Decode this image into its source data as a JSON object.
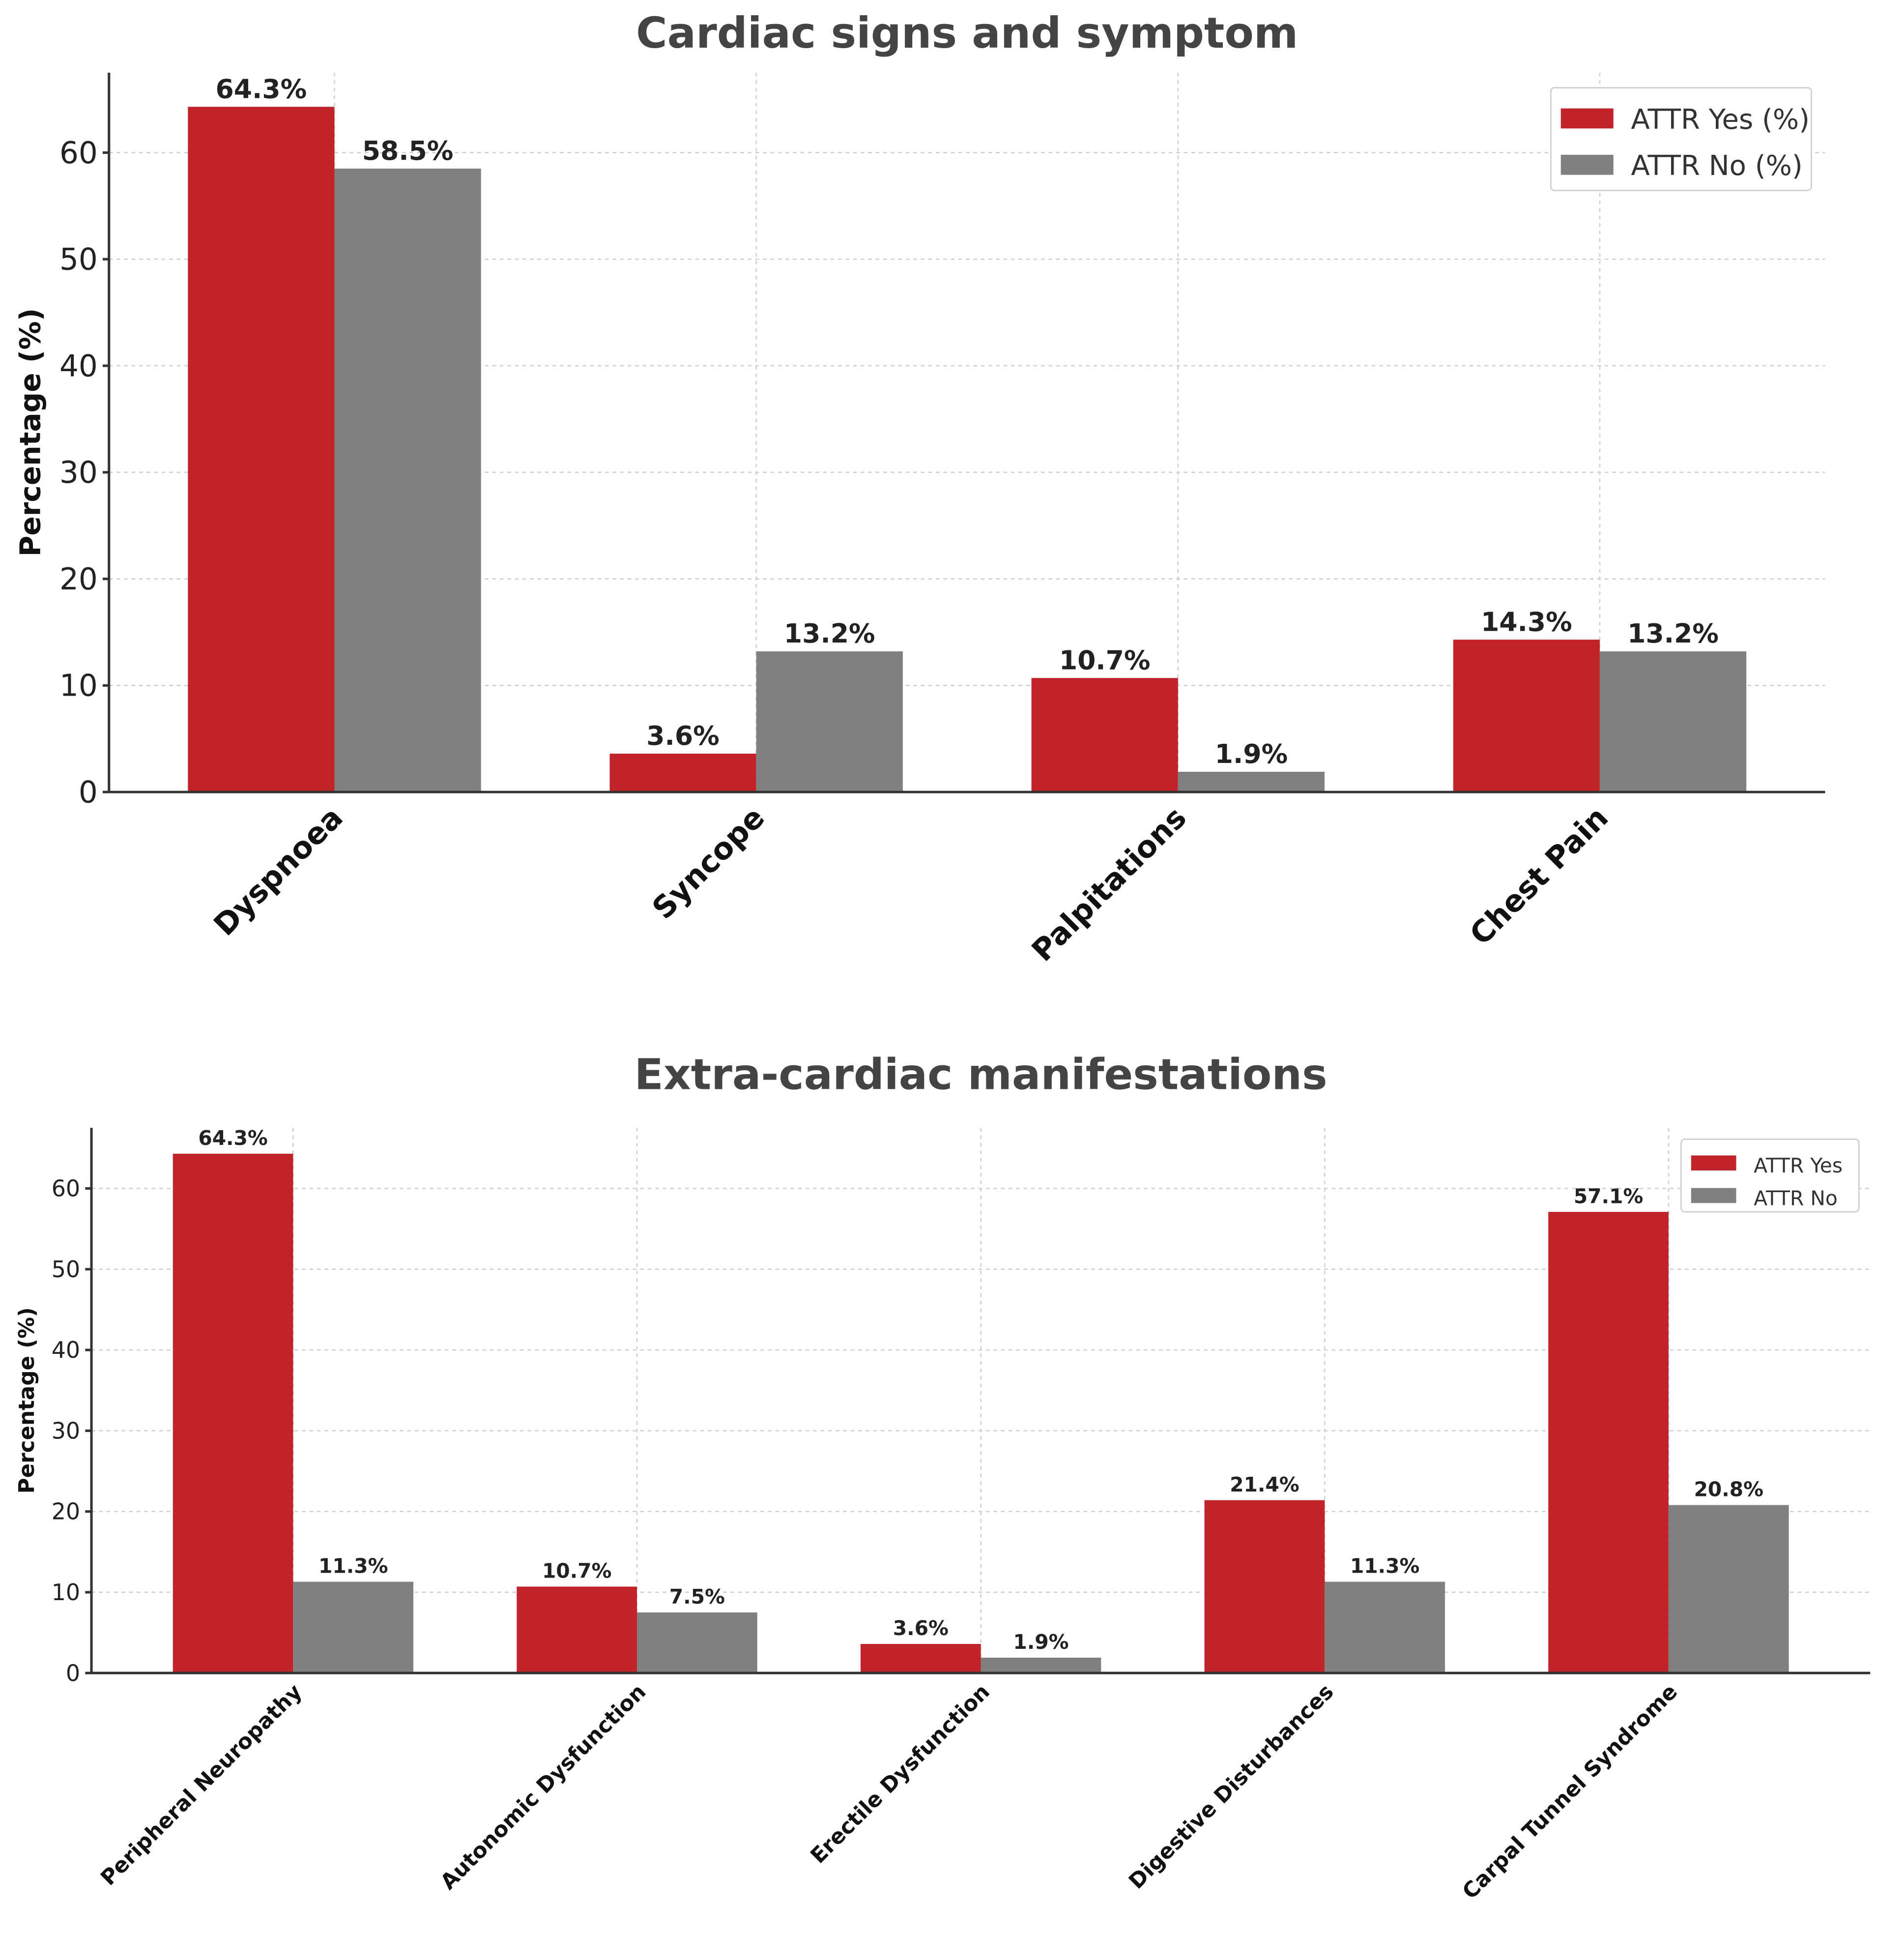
{
  "colors": {
    "yes": "#c0242a",
    "no": "#808080"
  },
  "chart_data": [
    {
      "type": "bar",
      "title": "Cardiac signs and symptom",
      "xlabel": "",
      "ylabel": "Percentage (%)",
      "ylim": [
        0,
        67.5
      ],
      "yticks": [
        0,
        10,
        20,
        30,
        40,
        50,
        60
      ],
      "grid": true,
      "legend_position": "top-right",
      "categories": [
        "Dyspnoea",
        "Syncope",
        "Palpitations",
        "Chest Pain"
      ],
      "series": [
        {
          "name": "ATTR Yes (%)",
          "values": [
            64.3,
            3.6,
            10.7,
            14.3
          ],
          "labels": [
            "64.3%",
            "3.6%",
            "10.7%",
            "14.3%"
          ]
        },
        {
          "name": "ATTR No (%)",
          "values": [
            58.5,
            13.2,
            1.9,
            13.2
          ],
          "labels": [
            "58.5%",
            "13.2%",
            "1.9%",
            "13.2%"
          ]
        }
      ]
    },
    {
      "type": "bar",
      "title": "Extra-cardiac manifestations",
      "xlabel": "",
      "ylabel": "Percentage (%)",
      "ylim": [
        0,
        67.5
      ],
      "yticks": [
        0,
        10,
        20,
        30,
        40,
        50,
        60
      ],
      "grid": true,
      "legend_position": "top-right",
      "categories": [
        "Peripheral Neuropathy",
        "Autonomic Dysfunction",
        "Erectile Dysfunction",
        "Digestive Disturbances",
        "Carpal Tunnel Syndrome"
      ],
      "series": [
        {
          "name": "ATTR Yes",
          "values": [
            64.3,
            10.7,
            3.6,
            21.4,
            57.1
          ],
          "labels": [
            "64.3%",
            "10.7%",
            "3.6%",
            "21.4%",
            "57.1%"
          ]
        },
        {
          "name": "ATTR No",
          "values": [
            11.3,
            7.5,
            1.9,
            11.3,
            20.8
          ],
          "labels": [
            "11.3%",
            "7.5%",
            "1.9%",
            "11.3%",
            "20.8%"
          ]
        }
      ]
    }
  ]
}
